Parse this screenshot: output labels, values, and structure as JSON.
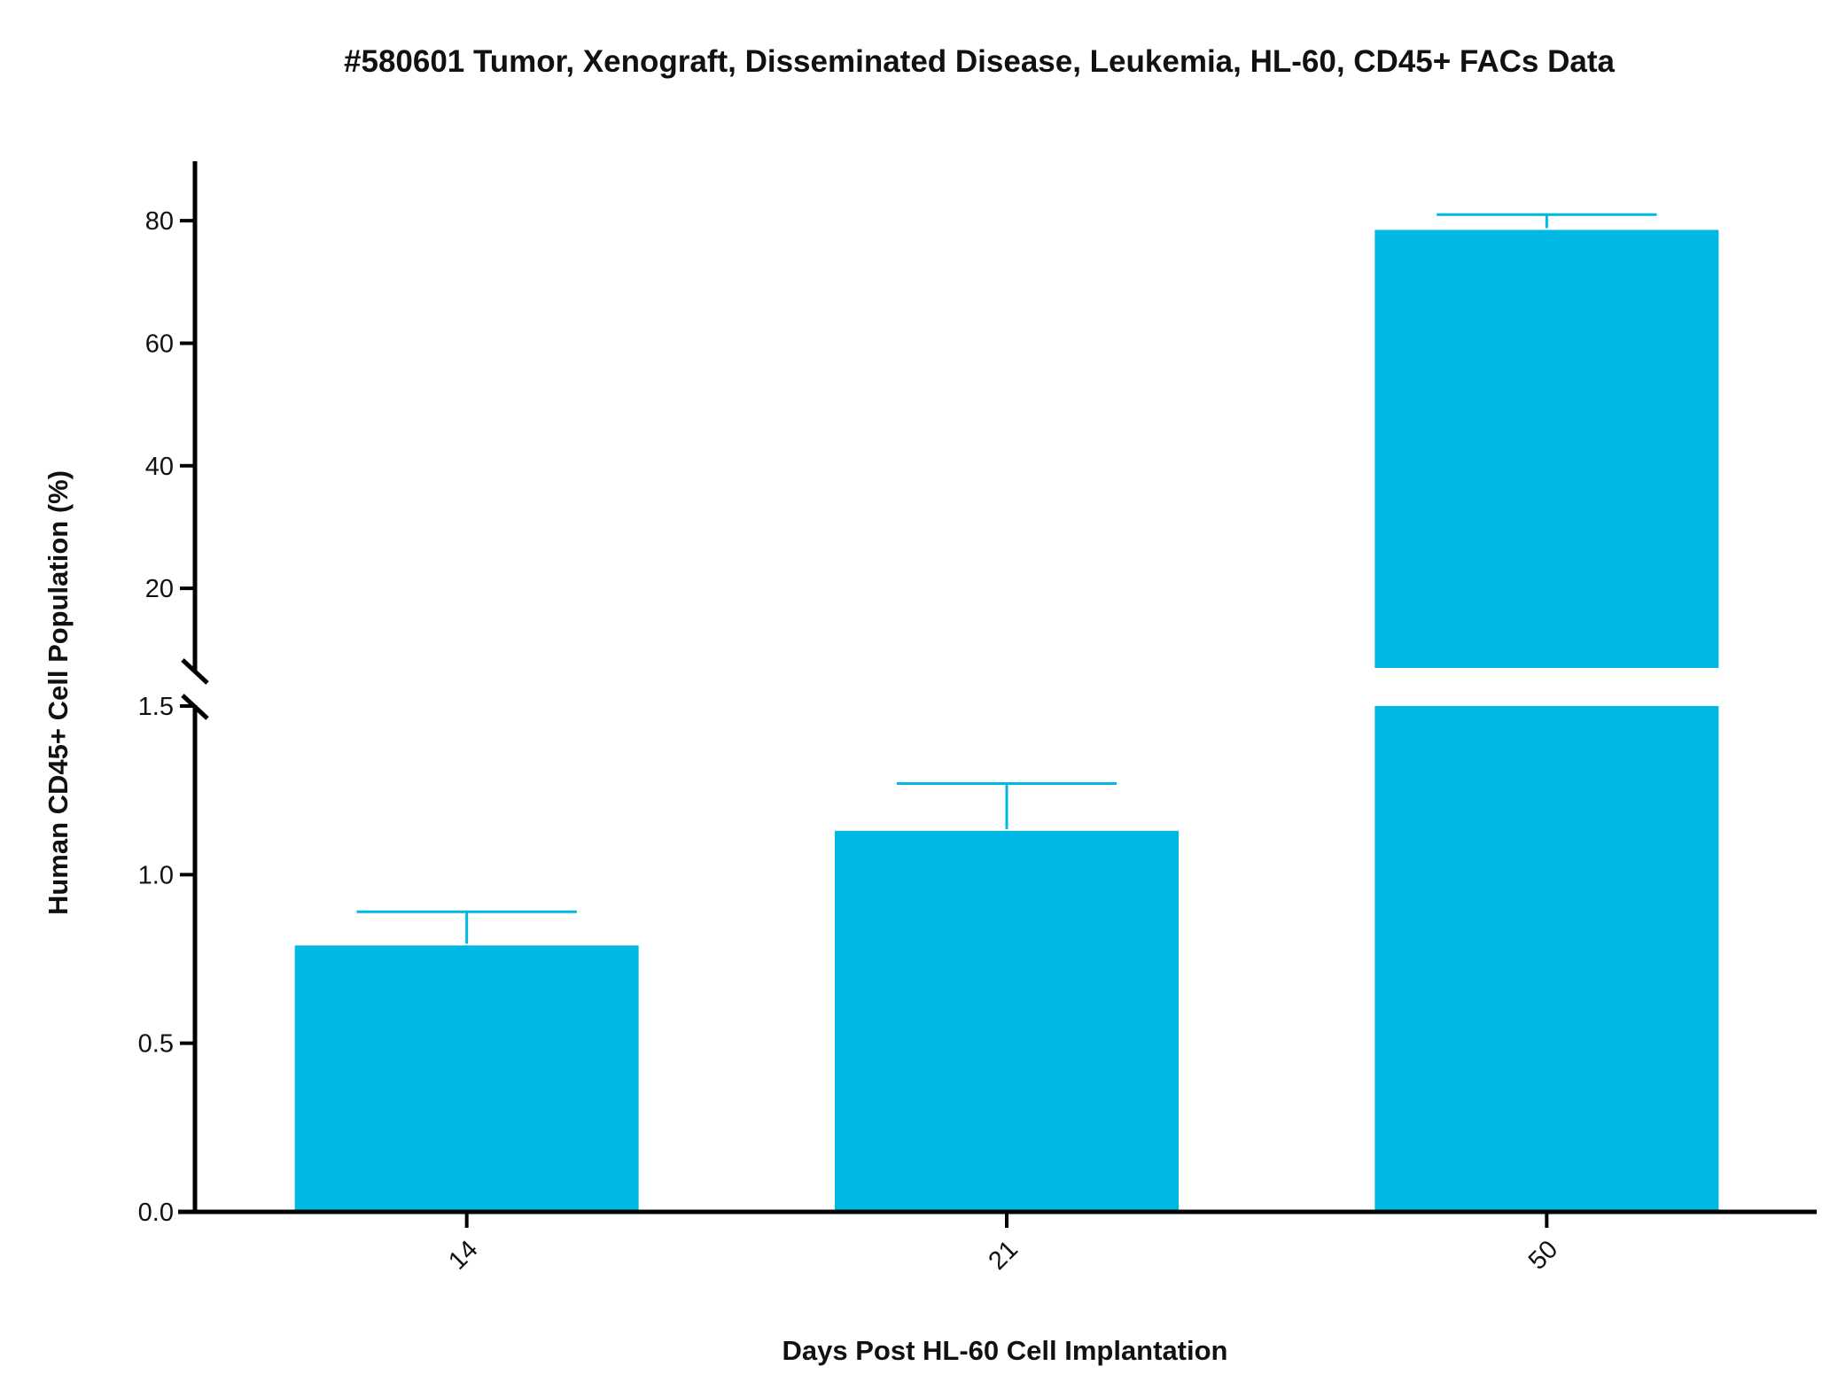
{
  "chart_data": {
    "type": "bar",
    "title": "#580601 Tumor, Xenograft, Disseminated Disease, Leukemia, HL-60, CD45+ FACs Data",
    "xlabel": "Days Post HL-60 Cell Implantation",
    "ylabel": "Human CD45+ Cell Population (%)",
    "categories": [
      "14",
      "21",
      "50"
    ],
    "values": [
      0.79,
      1.13,
      78.5
    ],
    "errors": [
      0.1,
      0.14,
      2.5
    ],
    "bar_color": "#00b8e4",
    "axis_break": true,
    "lower_segment": {
      "ylim": [
        0,
        1.5
      ],
      "ticks": [
        0.0,
        0.5,
        1.0,
        1.5
      ],
      "tick_labels": [
        "0.0",
        "0.5",
        "1.0",
        "1.5"
      ]
    },
    "upper_segment": {
      "ylim": [
        7,
        90
      ],
      "ticks": [
        20,
        40,
        60,
        80
      ],
      "tick_labels": [
        "20",
        "40",
        "60",
        "80"
      ]
    },
    "grid": false,
    "legend": "none"
  }
}
